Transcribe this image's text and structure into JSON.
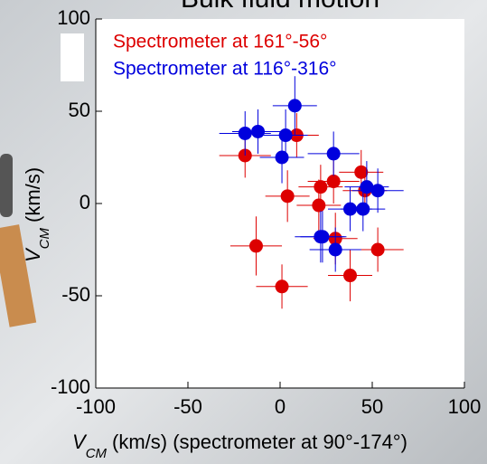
{
  "chart_data": {
    "type": "scatter",
    "title": "Bulk fluid motion",
    "x_label": {
      "main": "V",
      "sub": "CM",
      "unit": "(km/s)  (spectrometer at 90°-174°)"
    },
    "y_label": {
      "main": "V",
      "sub": "CM",
      "unit": "(km/s)"
    },
    "xlim": [
      -100,
      100
    ],
    "ylim": [
      -100,
      100
    ],
    "xticks": [
      -100,
      -50,
      0,
      50,
      100
    ],
    "yticks": [
      -100,
      -50,
      0,
      50,
      100
    ],
    "legend": "upper-left",
    "series": [
      {
        "name": "Spectrometer at 161°-56°",
        "color": "#dd0000",
        "x": [
          -19,
          9,
          4,
          -13,
          1,
          22,
          21,
          29,
          44,
          46,
          30,
          53,
          38
        ],
        "y": [
          26,
          37,
          4,
          -23,
          -45,
          9,
          -1,
          12,
          17,
          7,
          -19,
          -25,
          -39
        ],
        "xerr": [
          14,
          12,
          12,
          14,
          14,
          12,
          12,
          14,
          12,
          12,
          12,
          14,
          12
        ],
        "yerr": [
          12,
          12,
          14,
          16,
          12,
          12,
          14,
          12,
          12,
          12,
          14,
          12,
          14
        ]
      },
      {
        "name": "Spectrometer at 116°-316°",
        "color": "#0000dd",
        "x": [
          -19,
          -12,
          3,
          1,
          8,
          29,
          47,
          53,
          38,
          45,
          22,
          23,
          30
        ],
        "y": [
          38,
          39,
          37,
          25,
          53,
          27,
          9,
          7,
          -3,
          -3,
          -18,
          -18,
          -25
        ],
        "xerr": [
          14,
          14,
          12,
          12,
          12,
          14,
          12,
          14,
          12,
          12,
          14,
          12,
          14
        ],
        "yerr": [
          12,
          12,
          14,
          14,
          16,
          12,
          14,
          12,
          12,
          12,
          14,
          14,
          12
        ]
      }
    ]
  }
}
